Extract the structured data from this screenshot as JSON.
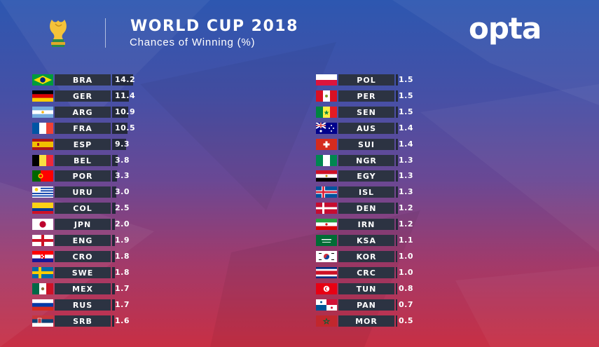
{
  "header": {
    "title": "WORLD CUP 2018",
    "subtitle": "Chances of Winning (%)",
    "brand": "opta"
  },
  "colors": {
    "code_box": "#2c3342",
    "value_box": "#23293a",
    "text": "#ffffff"
  },
  "icons": [
    "trophy-icon",
    "flag-icons"
  ],
  "chart_data": {
    "type": "bar",
    "title": "WORLD CUP 2018",
    "subtitle": "Chances of Winning (%)",
    "unit": "%",
    "xlabel": "",
    "ylabel": "",
    "xlim": [
      0,
      14.2
    ],
    "grid": false,
    "columns": 2,
    "categories": [
      "BRA",
      "GER",
      "ARG",
      "FRA",
      "ESP",
      "BEL",
      "POR",
      "URU",
      "COL",
      "JPN",
      "ENG",
      "CRO",
      "SWE",
      "MEX",
      "RUS",
      "SRB",
      "POL",
      "PER",
      "SEN",
      "AUS",
      "SUI",
      "NGR",
      "EGY",
      "ISL",
      "DEN",
      "IRN",
      "KSA",
      "KOR",
      "CRC",
      "TUN",
      "PAN",
      "MOR"
    ],
    "values": [
      14.2,
      11.4,
      10.9,
      10.5,
      9.3,
      3.8,
      3.3,
      3.0,
      2.5,
      2.0,
      1.9,
      1.8,
      1.8,
      1.7,
      1.7,
      1.6,
      1.5,
      1.5,
      1.5,
      1.4,
      1.4,
      1.3,
      1.3,
      1.3,
      1.2,
      1.2,
      1.1,
      1.0,
      1.0,
      0.8,
      0.7,
      0.5
    ],
    "labels": [
      "14.2",
      "11.4",
      "10.9",
      "10.5",
      "9.3",
      "3.8",
      "3.3",
      "3.0",
      "2.5",
      "2.0",
      "1.9",
      "1.8",
      "1.8",
      "1.7",
      "1.7",
      "1.6",
      "1.5",
      "1.5",
      "1.5",
      "1.4",
      "1.4",
      "1.3",
      "1.3",
      "1.3",
      "1.2",
      "1.2",
      "1.1",
      "1.0",
      "1.0",
      "0.8",
      "0.7",
      "0.5"
    ]
  }
}
